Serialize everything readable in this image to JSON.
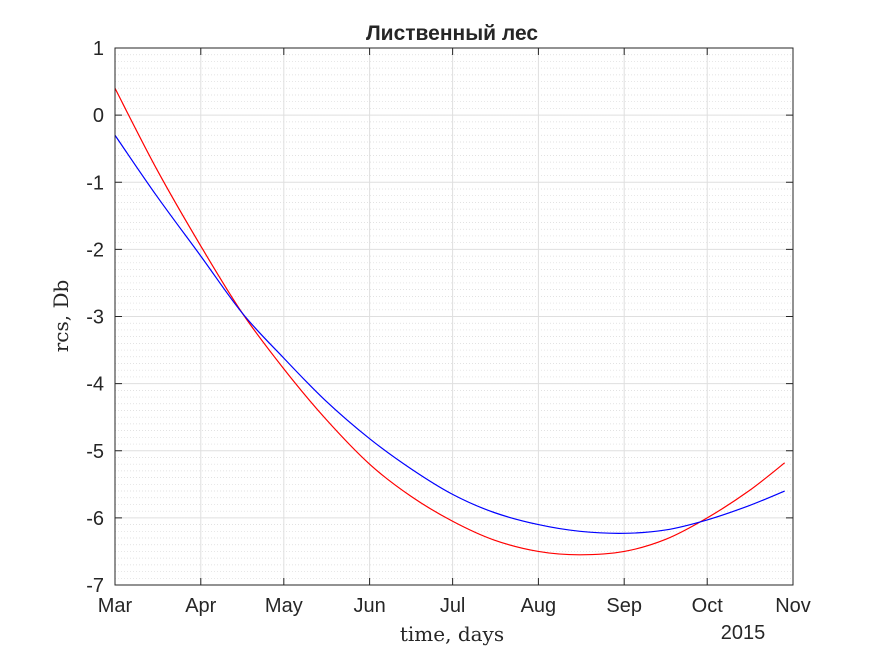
{
  "chart_data": {
    "type": "line",
    "title": "Лиственный лес",
    "xlabel": "time, days",
    "ylabel": "rcs, Db",
    "x_secondary_label": "2015",
    "x_tick_labels": [
      "Mar",
      "Apr",
      "May",
      "Jun",
      "Jul",
      "Aug",
      "Sep",
      "Oct",
      "Nov"
    ],
    "x_tick_dates": [
      "2015-03-01",
      "2015-04-01",
      "2015-05-01",
      "2015-06-01",
      "2015-07-01",
      "2015-08-01",
      "2015-09-01",
      "2015-10-01",
      "2015-11-01"
    ],
    "xlim": [
      "2015-03-01",
      "2015-11-01"
    ],
    "ylim": [
      -7,
      1
    ],
    "y_ticks": [
      1,
      0,
      -1,
      -2,
      -3,
      -4,
      -5,
      -6,
      -7
    ],
    "grid": true,
    "minor_grid": true,
    "series": [
      {
        "color": "#ff0000",
        "x": [
          "2015-03-01",
          "2015-03-16",
          "2015-04-01",
          "2015-04-16",
          "2015-05-01",
          "2015-05-16",
          "2015-06-01",
          "2015-06-16",
          "2015-07-01",
          "2015-07-16",
          "2015-08-01",
          "2015-08-16",
          "2015-09-01",
          "2015-09-16",
          "2015-10-01",
          "2015-10-16",
          "2015-10-29"
        ],
        "y": [
          0.4,
          -0.8,
          -1.95,
          -2.95,
          -3.78,
          -4.52,
          -5.2,
          -5.68,
          -6.05,
          -6.33,
          -6.5,
          -6.55,
          -6.5,
          -6.32,
          -6.0,
          -5.6,
          -5.18
        ]
      },
      {
        "color": "#0000ff",
        "x": [
          "2015-03-01",
          "2015-03-16",
          "2015-04-01",
          "2015-04-16",
          "2015-05-01",
          "2015-05-16",
          "2015-06-01",
          "2015-06-16",
          "2015-07-01",
          "2015-07-16",
          "2015-08-01",
          "2015-08-16",
          "2015-09-01",
          "2015-09-16",
          "2015-10-01",
          "2015-10-16",
          "2015-10-29"
        ],
        "y": [
          -0.3,
          -1.2,
          -2.1,
          -2.95,
          -3.62,
          -4.25,
          -4.82,
          -5.27,
          -5.65,
          -5.92,
          -6.1,
          -6.2,
          -6.23,
          -6.18,
          -6.03,
          -5.82,
          -5.6
        ]
      }
    ]
  }
}
